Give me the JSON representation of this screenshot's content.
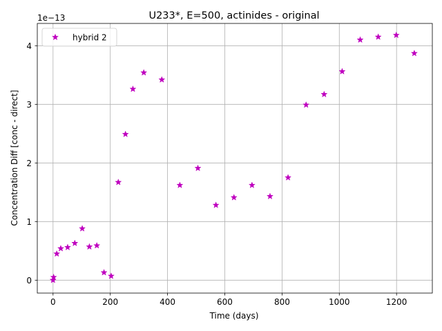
{
  "chart_data": {
    "type": "scatter",
    "title": "U233*, E=500, actinides - original",
    "xlabel": "Time (days)",
    "ylabel": "Concentration Diff [conc - direct]",
    "y_offset_label": "1e−13",
    "xlim": [
      -55,
      1325
    ],
    "ylim": [
      -0.22,
      4.38
    ],
    "y_scale_exponent": -13,
    "x_ticks": [
      0,
      200,
      400,
      600,
      800,
      1000,
      1200
    ],
    "x_tick_labels": [
      "0",
      "200",
      "400",
      "600",
      "800",
      "1000",
      "1200"
    ],
    "y_ticks": [
      0,
      1,
      2,
      3,
      4
    ],
    "y_tick_labels": [
      "0",
      "1",
      "2",
      "3",
      "4"
    ],
    "grid": true,
    "legend_position": "upper-left",
    "series": [
      {
        "name": "hybrid 2",
        "marker": "star",
        "color": "#bf00bf",
        "x": [
          0,
          2,
          13,
          27,
          51,
          76,
          102,
          127,
          153,
          178,
          203,
          228,
          253,
          279,
          317,
          380,
          443,
          506,
          569,
          632,
          695,
          758,
          821,
          884,
          947,
          1010,
          1073,
          1136,
          1199,
          1262
        ],
        "y": [
          0.0,
          0.05,
          0.45,
          0.54,
          0.56,
          0.63,
          0.88,
          0.57,
          0.59,
          0.13,
          0.07,
          1.67,
          2.49,
          3.26,
          3.54,
          3.42,
          1.62,
          1.91,
          1.28,
          1.41,
          1.62,
          1.43,
          1.75,
          2.99,
          3.17,
          3.56,
          4.1,
          4.15,
          4.18,
          3.87
        ]
      }
    ]
  }
}
